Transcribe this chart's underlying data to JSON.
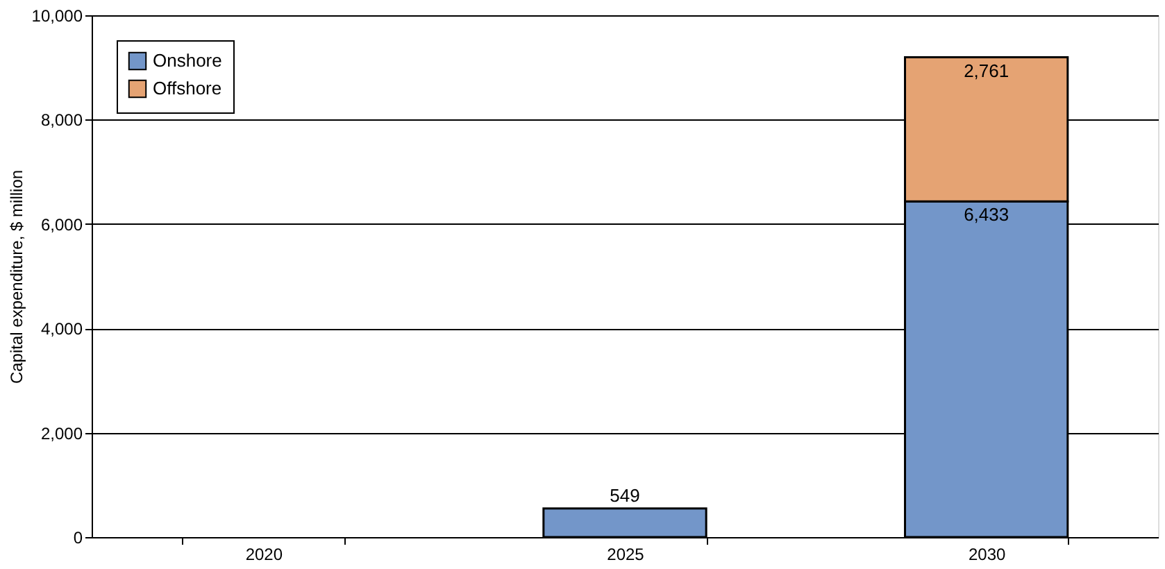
{
  "chart_data": {
    "type": "bar",
    "stacked": true,
    "ylabel": "Capital expenditure, $ million",
    "categories": [
      "2020",
      "2025",
      "2030"
    ],
    "series": [
      {
        "name": "Onshore",
        "color": "#7396c9",
        "values": [
          null,
          549,
          6433
        ],
        "value_labels": [
          null,
          "549",
          "6,433"
        ]
      },
      {
        "name": "Offshore",
        "color": "#e5a373",
        "values": [
          null,
          null,
          2761
        ],
        "value_labels": [
          null,
          null,
          "2,761"
        ]
      }
    ],
    "ylim": [
      0,
      10000
    ],
    "yticks": [
      0,
      {
        "value": 2000,
        "label": "2,000"
      },
      {
        "value": 4000,
        "label": "4,000"
      },
      {
        "value": 6000,
        "label": "6,000"
      },
      {
        "value": 8000,
        "label": "8,000"
      },
      {
        "value": 10000,
        "label": "10,000"
      }
    ],
    "grid": "y",
    "legend": "top left"
  }
}
